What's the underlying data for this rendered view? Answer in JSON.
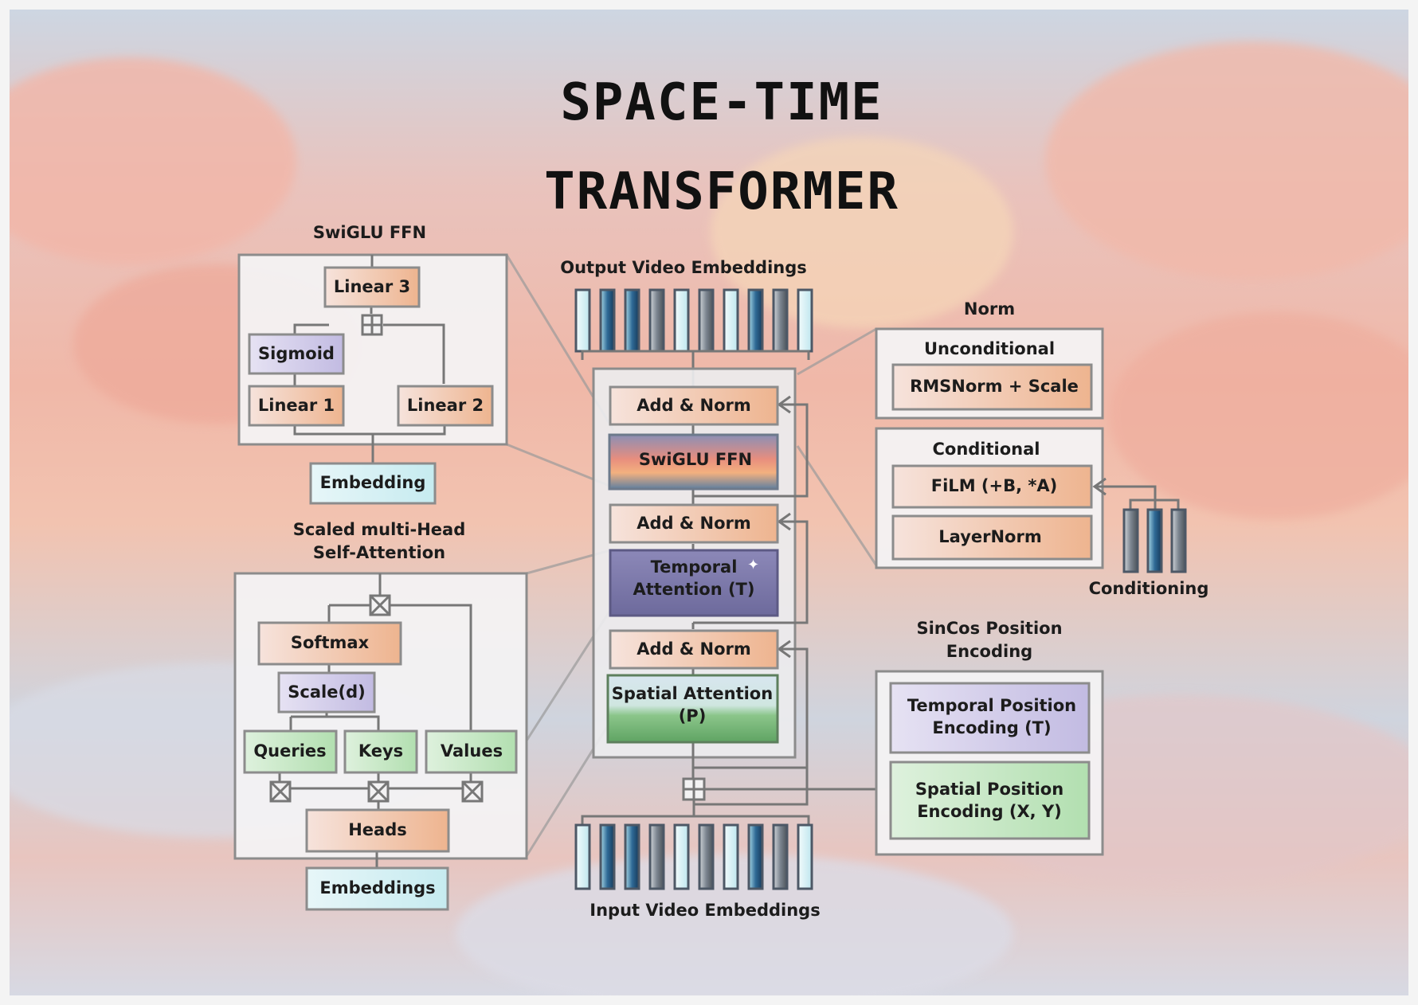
{
  "title": {
    "line1": "SPACE-TIME",
    "line2": "TRANSFORMER"
  },
  "colors": {
    "orange": "#f2bfa0",
    "purple": "#c9c3e6",
    "green": "#bfe3bf",
    "cyan": "#cfeef2",
    "border": "#8c8c8c"
  },
  "swiglu": {
    "heading": "SwiGLU FFN",
    "linear3": "Linear 3",
    "sigmoid": "Sigmoid",
    "linear1": "Linear 1",
    "linear2": "Linear 2",
    "embedding": "Embedding"
  },
  "attention": {
    "heading_line1": "Scaled multi-Head",
    "heading_line2": "Self-Attention",
    "softmax": "Softmax",
    "scale": "Scale(d)",
    "queries": "Queries",
    "keys": "Keys",
    "values": "Values",
    "heads": "Heads",
    "embeddings": "Embeddings"
  },
  "center": {
    "output_label": "Output Video Embeddings",
    "input_label": "Input Video Embeddings",
    "add_norm_1": "Add & Norm",
    "swiglu_ffn": "SwiGLU FFN",
    "add_norm_2": "Add & Norm",
    "temporal_line1": "Temporal",
    "temporal_line2": "Attention (T)",
    "add_norm_3": "Add & Norm",
    "spatial_line1": "Spatial Attention",
    "spatial_line2": "(P)"
  },
  "norm": {
    "heading": "Norm",
    "unconditional": "Unconditional",
    "rmsnorm": "RMSNorm + Scale",
    "conditional": "Conditional",
    "film": "FiLM (+B, *A)",
    "layernorm": "LayerNorm",
    "conditioning": "Conditioning"
  },
  "position": {
    "heading_line1": "SinCos Position",
    "heading_line2": "Encoding",
    "temporal_line1": "Temporal Position",
    "temporal_line2": "Encoding (T)",
    "spatial_line1": "Spatial Position",
    "spatial_line2": "Encoding (X, Y)"
  }
}
